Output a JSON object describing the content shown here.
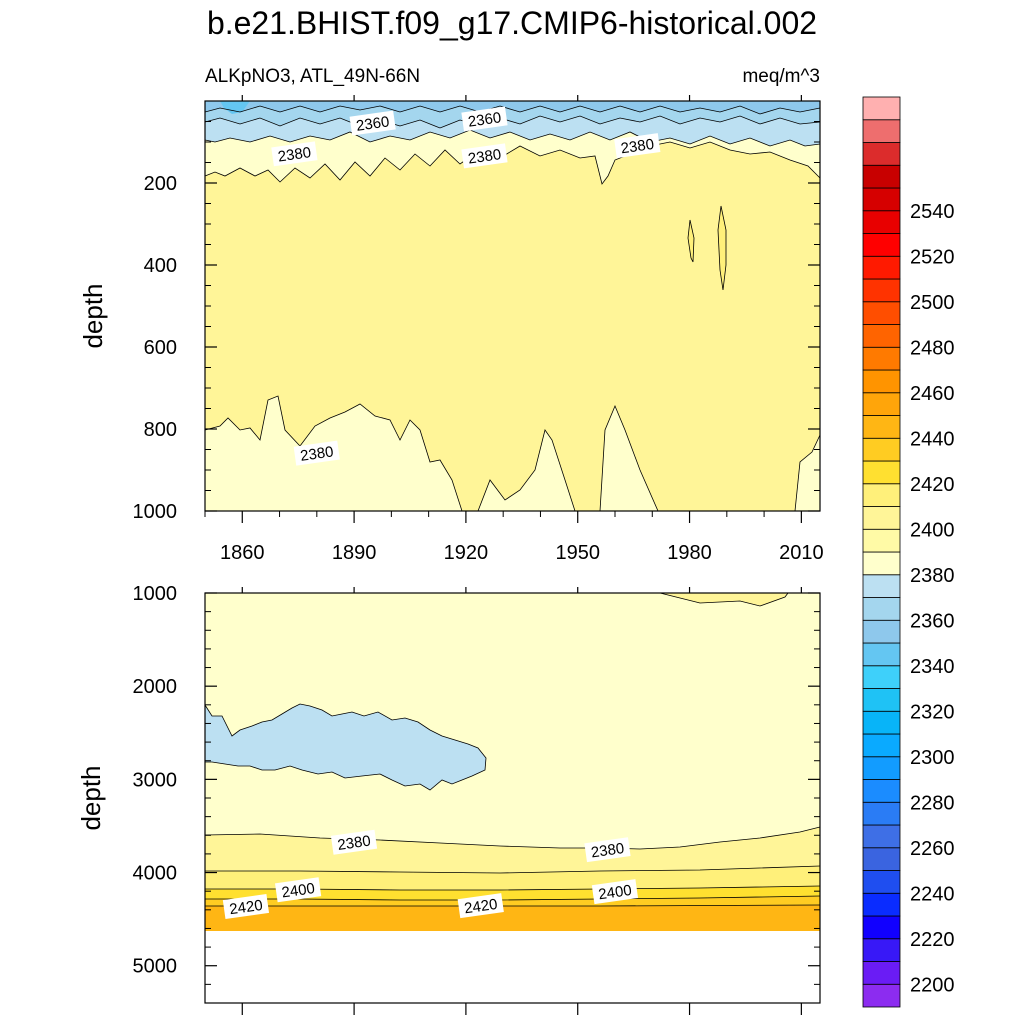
{
  "title": "b.e21.BHIST.f09_g17.CMIP6-historical.002",
  "chart_data": [
    {
      "type": "contour",
      "panel": "upper",
      "left_label": "ALKpNO3, ATL_49N-66N",
      "right_label": "meq/m^3",
      "ylabel": "depth",
      "xlim": [
        1850,
        2015
      ],
      "ylim": [
        0,
        1000
      ],
      "x_ticks": [
        1860,
        1890,
        1920,
        1950,
        1980,
        2010
      ],
      "x_tick_labels": [
        "1860",
        "1890",
        "1920",
        "1950",
        "1980",
        "2010"
      ],
      "y_ticks": [
        200,
        400,
        600,
        800,
        1000
      ],
      "y_tick_labels": [
        "200",
        "400",
        "600",
        "800",
        "1000"
      ],
      "contour_interval": 10,
      "contour_labels": [
        {
          "text": "2360",
          "x": 1895,
          "y": 55
        },
        {
          "text": "2360",
          "x": 1925,
          "y": 45
        },
        {
          "text": "2380",
          "x": 1874,
          "y": 130
        },
        {
          "text": "2380",
          "x": 1925,
          "y": 135
        },
        {
          "text": "2380",
          "x": 1966,
          "y": 110
        },
        {
          "text": "2380",
          "x": 1880,
          "y": 860
        }
      ],
      "regions": [
        {
          "level_range": [
            2350,
            2370
          ],
          "description": "surface layer 0-80 m"
        },
        {
          "level_range": [
            2370,
            2380
          ],
          "description": "80-180 m and bottom 800-1000 m"
        },
        {
          "level_range": [
            2380,
            2390
          ],
          "description": "core 180-800 m"
        },
        {
          "level_range": [
            2390,
            2400
          ],
          "description": "small lenses near 1980 and 1988 at 260-460 m"
        }
      ]
    },
    {
      "type": "contour",
      "panel": "lower",
      "ylabel": "depth",
      "xlim": [
        1850,
        2015
      ],
      "ylim": [
        1000,
        5400
      ],
      "y_ticks": [
        1000,
        2000,
        3000,
        4000,
        5000
      ],
      "y_tick_labels": [
        "1000",
        "2000",
        "3000",
        "4000",
        "5000"
      ],
      "contour_interval": 10,
      "contour_labels": [
        {
          "text": "2380",
          "x": 1890,
          "y": 3680
        },
        {
          "text": "2380",
          "x": 1958,
          "y": 3760
        },
        {
          "text": "2400",
          "x": 1875,
          "y": 4190
        },
        {
          "text": "2400",
          "x": 1960,
          "y": 4210
        },
        {
          "text": "2420",
          "x": 1861,
          "y": 4370
        },
        {
          "text": "2420",
          "x": 1924,
          "y": 4360
        }
      ],
      "regions": [
        {
          "level_range": [
            2360,
            2370
          ],
          "description": "blob 2100-3100 m, 1850-1925"
        },
        {
          "level_range": [
            2370,
            2380
          ],
          "description": "1000-3600 m"
        },
        {
          "level_range": [
            2380,
            2400
          ],
          "description": "3600-4200 m"
        },
        {
          "level_range": [
            2400,
            2430
          ],
          "description": "4200-4620 m"
        }
      ],
      "missing_below": 4620
    }
  ],
  "colorbar": {
    "label_values": [
      "2200",
      "2220",
      "2240",
      "2260",
      "2280",
      "2300",
      "2320",
      "2340",
      "2360",
      "2380",
      "2400",
      "2420",
      "2440",
      "2460",
      "2480",
      "2500",
      "2520",
      "2540"
    ],
    "colors": [
      "#8c2cf0",
      "#6a1cf5",
      "#3818f7",
      "#1100ff",
      "#0a2cff",
      "#1f4ef0",
      "#3a64e0",
      "#3e6fe6",
      "#2a7cf5",
      "#1b8cff",
      "#129cff",
      "#0aaaff",
      "#08b4f8",
      "#1fc2f5",
      "#3ed0fa",
      "#64c6f2",
      "#8ec8ec",
      "#a4d6ee",
      "#bce0f2",
      "#ffffcc",
      "#fffaa6",
      "#fff598",
      "#fff07a",
      "#ffe030",
      "#ffcc22",
      "#ffb614",
      "#ffa50a",
      "#ff9400",
      "#ff7a00",
      "#ff6400",
      "#ff4e00",
      "#ff3300",
      "#ff1a00",
      "#ff0000",
      "#e80000",
      "#d60000",
      "#c80000",
      "#dc2c2c",
      "#ee6e6e",
      "#ffb0b0"
    ]
  }
}
